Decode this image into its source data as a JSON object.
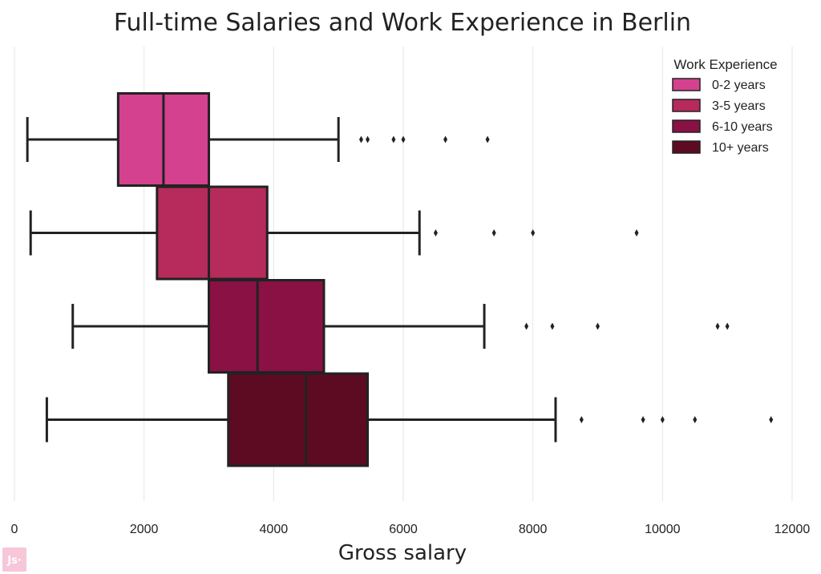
{
  "chart_data": {
    "type": "boxplot",
    "orientation": "horizontal",
    "title": "Full-time Salaries and Work Experience in Berlin",
    "xlabel": "Gross salary",
    "ylabel": "",
    "xlim": [
      0,
      12000
    ],
    "xticks": [
      0,
      2000,
      4000,
      6000,
      8000,
      10000,
      12000
    ],
    "grid": "vertical",
    "legend": {
      "title": "Work Experience",
      "position": "top-right"
    },
    "series": [
      {
        "name": "0-2 years",
        "color": "#d4418e",
        "whisker_low": 200,
        "q1": 1600,
        "median": 2300,
        "q3": 3000,
        "whisker_high": 5000,
        "outliers": [
          5350,
          5450,
          5850,
          6000,
          6650,
          7300
        ]
      },
      {
        "name": "3-5 years",
        "color": "#b62a5c",
        "whisker_low": 250,
        "q1": 2200,
        "median": 3000,
        "q3": 3900,
        "whisker_high": 6250,
        "outliers": [
          6500,
          7400,
          8000,
          9600
        ]
      },
      {
        "name": "6-10 years",
        "color": "#8a1144",
        "whisker_low": 900,
        "q1": 3000,
        "median": 3750,
        "q3": 4775,
        "whisker_high": 7250,
        "outliers": [
          7900,
          8300,
          9000,
          10850,
          11000
        ]
      },
      {
        "name": "10+ years",
        "color": "#5c0b22",
        "whisker_low": 500,
        "q1": 3300,
        "median": 4500,
        "q3": 5450,
        "whisker_high": 8350,
        "outliers": [
          8750,
          9700,
          10000,
          10500,
          11675
        ]
      }
    ]
  },
  "logo": {
    "text": "Js·",
    "color": "#f7c6d8"
  }
}
